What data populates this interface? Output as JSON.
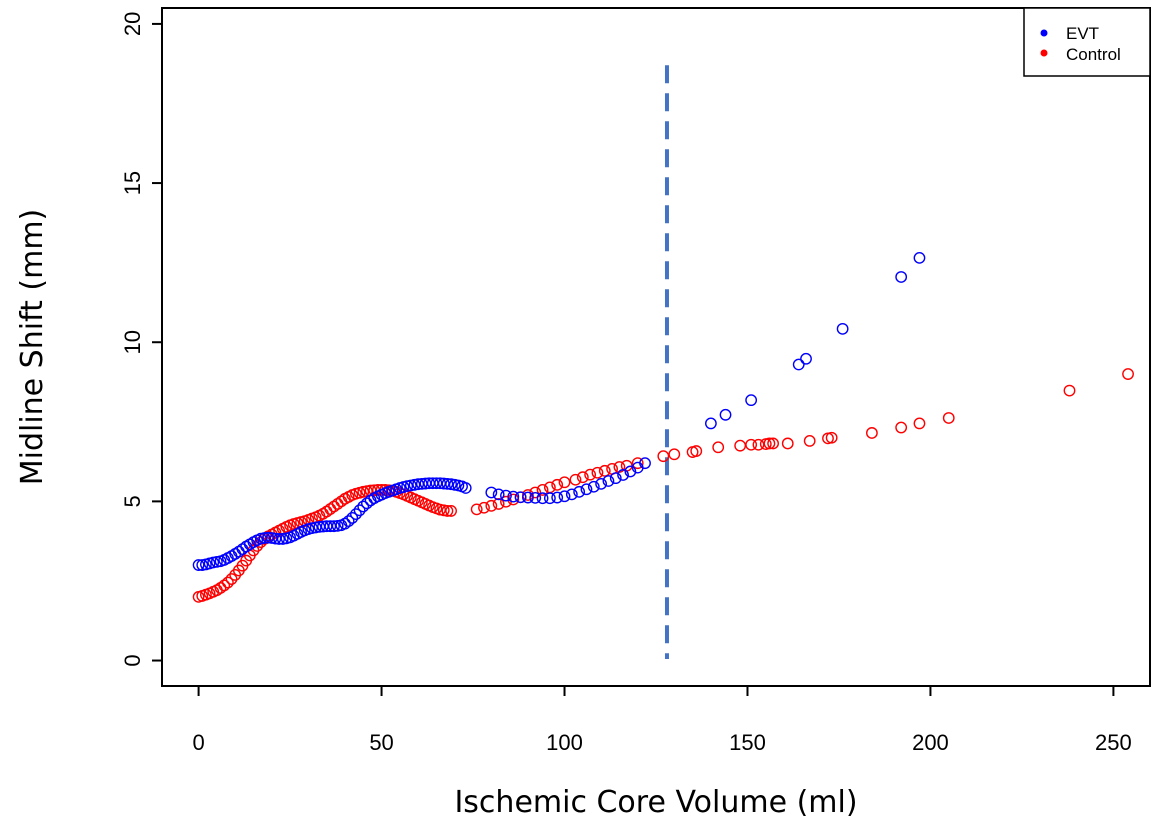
{
  "chart_data": {
    "type": "scatter",
    "xlabel": "Ischemic Core Volume (ml)",
    "ylabel": "Midline Shift (mm)",
    "xlim": [
      -10,
      260
    ],
    "ylim": [
      -0.8,
      20.5
    ],
    "x_ticks": [
      0,
      50,
      100,
      150,
      200,
      250
    ],
    "y_ticks": [
      0,
      5,
      10,
      15,
      20
    ],
    "x_tick_labels": [
      "0",
      "50",
      "100",
      "150",
      "200",
      "250"
    ],
    "y_tick_labels": [
      "0",
      "5",
      "10",
      "15",
      "20"
    ],
    "grid": false,
    "legend_position": "top-right",
    "reference_line": {
      "orientation": "vertical",
      "x": 128,
      "style": "dashed",
      "color": "#4472c4"
    },
    "colors": {
      "EVT": "#0000ff",
      "Control": "#ff0000"
    },
    "series": [
      {
        "name": "EVT",
        "points": [
          [
            0,
            3
          ],
          [
            1,
            3
          ],
          [
            2,
            3.02
          ],
          [
            3,
            3.05
          ],
          [
            4,
            3.08
          ],
          [
            5,
            3.1
          ],
          [
            6,
            3.12
          ],
          [
            7,
            3.16
          ],
          [
            8,
            3.22
          ],
          [
            9,
            3.28
          ],
          [
            10,
            3.35
          ],
          [
            11,
            3.42
          ],
          [
            12,
            3.5
          ],
          [
            13,
            3.58
          ],
          [
            14,
            3.65
          ],
          [
            15,
            3.72
          ],
          [
            16,
            3.78
          ],
          [
            17,
            3.83
          ],
          [
            18,
            3.85
          ],
          [
            19,
            3.86
          ],
          [
            20,
            3.85
          ],
          [
            21,
            3.83
          ],
          [
            22,
            3.82
          ],
          [
            23,
            3.82
          ],
          [
            24,
            3.84
          ],
          [
            25,
            3.87
          ],
          [
            26,
            3.92
          ],
          [
            27,
            3.98
          ],
          [
            28,
            4.04
          ],
          [
            29,
            4.09
          ],
          [
            30,
            4.13
          ],
          [
            31,
            4.16
          ],
          [
            32,
            4.18
          ],
          [
            33,
            4.2
          ],
          [
            34,
            4.21
          ],
          [
            35,
            4.22
          ],
          [
            36,
            4.22
          ],
          [
            37,
            4.22
          ],
          [
            38,
            4.23
          ],
          [
            39,
            4.25
          ],
          [
            40,
            4.3
          ],
          [
            41,
            4.38
          ],
          [
            42,
            4.48
          ],
          [
            43,
            4.6
          ],
          [
            44,
            4.72
          ],
          [
            45,
            4.84
          ],
          [
            46,
            4.94
          ],
          [
            47,
            5.03
          ],
          [
            48,
            5.1
          ],
          [
            49,
            5.16
          ],
          [
            50,
            5.21
          ],
          [
            51,
            5.26
          ],
          [
            52,
            5.3
          ],
          [
            53,
            5.34
          ],
          [
            54,
            5.38
          ],
          [
            55,
            5.42
          ],
          [
            56,
            5.45
          ],
          [
            57,
            5.48
          ],
          [
            58,
            5.5
          ],
          [
            59,
            5.52
          ],
          [
            60,
            5.54
          ],
          [
            61,
            5.55
          ],
          [
            62,
            5.56
          ],
          [
            63,
            5.57
          ],
          [
            64,
            5.57
          ],
          [
            65,
            5.57
          ],
          [
            66,
            5.57
          ],
          [
            67,
            5.56
          ],
          [
            68,
            5.55
          ],
          [
            69,
            5.54
          ],
          [
            70,
            5.52
          ],
          [
            71,
            5.5
          ],
          [
            72,
            5.47
          ],
          [
            73,
            5.42
          ],
          [
            80,
            5.28
          ],
          [
            82,
            5.22
          ],
          [
            84,
            5.18
          ],
          [
            86,
            5.15
          ],
          [
            88,
            5.13
          ],
          [
            90,
            5.12
          ],
          [
            92,
            5.11
          ],
          [
            94,
            5.1
          ],
          [
            96,
            5.1
          ],
          [
            98,
            5.12
          ],
          [
            100,
            5.16
          ],
          [
            102,
            5.22
          ],
          [
            104,
            5.3
          ],
          [
            106,
            5.38
          ],
          [
            108,
            5.46
          ],
          [
            110,
            5.55
          ],
          [
            112,
            5.64
          ],
          [
            114,
            5.73
          ],
          [
            116,
            5.83
          ],
          [
            118,
            5.94
          ],
          [
            120,
            6.06
          ],
          [
            122,
            6.2
          ],
          [
            140,
            7.45
          ],
          [
            144,
            7.72
          ],
          [
            151,
            8.18
          ],
          [
            164,
            9.3
          ],
          [
            166,
            9.48
          ],
          [
            176,
            10.42
          ],
          [
            192,
            12.05
          ],
          [
            197,
            12.65
          ]
        ]
      },
      {
        "name": "Control",
        "points": [
          [
            0,
            2
          ],
          [
            1,
            2.03
          ],
          [
            2,
            2.07
          ],
          [
            3,
            2.11
          ],
          [
            4,
            2.16
          ],
          [
            5,
            2.21
          ],
          [
            6,
            2.28
          ],
          [
            7,
            2.36
          ],
          [
            8,
            2.45
          ],
          [
            9,
            2.56
          ],
          [
            10,
            2.69
          ],
          [
            11,
            2.83
          ],
          [
            12,
            2.98
          ],
          [
            13,
            3.14
          ],
          [
            14,
            3.3
          ],
          [
            15,
            3.46
          ],
          [
            16,
            3.6
          ],
          [
            17,
            3.72
          ],
          [
            18,
            3.82
          ],
          [
            19,
            3.9
          ],
          [
            20,
            3.96
          ],
          [
            21,
            4.02
          ],
          [
            22,
            4.08
          ],
          [
            23,
            4.14
          ],
          [
            24,
            4.2
          ],
          [
            25,
            4.25
          ],
          [
            26,
            4.29
          ],
          [
            27,
            4.32
          ],
          [
            28,
            4.35
          ],
          [
            29,
            4.38
          ],
          [
            30,
            4.42
          ],
          [
            31,
            4.46
          ],
          [
            32,
            4.5
          ],
          [
            33,
            4.55
          ],
          [
            34,
            4.61
          ],
          [
            35,
            4.68
          ],
          [
            36,
            4.76
          ],
          [
            37,
            4.84
          ],
          [
            38,
            4.92
          ],
          [
            39,
            5
          ],
          [
            40,
            5.08
          ],
          [
            41,
            5.14
          ],
          [
            42,
            5.2
          ],
          [
            43,
            5.24
          ],
          [
            44,
            5.27
          ],
          [
            45,
            5.3
          ],
          [
            46,
            5.32
          ],
          [
            47,
            5.34
          ],
          [
            48,
            5.35
          ],
          [
            49,
            5.36
          ],
          [
            50,
            5.36
          ],
          [
            51,
            5.36
          ],
          [
            52,
            5.35
          ],
          [
            53,
            5.33
          ],
          [
            54,
            5.3
          ],
          [
            55,
            5.26
          ],
          [
            56,
            5.22
          ],
          [
            57,
            5.17
          ],
          [
            58,
            5.12
          ],
          [
            59,
            5.07
          ],
          [
            60,
            5.02
          ],
          [
            61,
            4.97
          ],
          [
            62,
            4.92
          ],
          [
            63,
            4.87
          ],
          [
            64,
            4.82
          ],
          [
            65,
            4.78
          ],
          [
            66,
            4.74
          ],
          [
            67,
            4.72
          ],
          [
            68,
            4.7
          ],
          [
            69,
            4.7
          ],
          [
            76,
            4.75
          ],
          [
            78,
            4.8
          ],
          [
            80,
            4.86
          ],
          [
            82,
            4.92
          ],
          [
            84,
            4.99
          ],
          [
            86,
            5.06
          ],
          [
            88,
            5.13
          ],
          [
            90,
            5.2
          ],
          [
            92,
            5.28
          ],
          [
            94,
            5.36
          ],
          [
            96,
            5.44
          ],
          [
            98,
            5.52
          ],
          [
            100,
            5.6
          ],
          [
            103,
            5.68
          ],
          [
            105,
            5.76
          ],
          [
            107,
            5.84
          ],
          [
            109,
            5.9
          ],
          [
            111,
            5.96
          ],
          [
            113,
            6.02
          ],
          [
            115,
            6.08
          ],
          [
            117,
            6.12
          ],
          [
            120,
            6.2
          ],
          [
            127,
            6.42
          ],
          [
            130,
            6.48
          ],
          [
            135,
            6.55
          ],
          [
            136,
            6.58
          ],
          [
            142,
            6.7
          ],
          [
            148,
            6.75
          ],
          [
            151,
            6.78
          ],
          [
            153,
            6.78
          ],
          [
            155,
            6.8
          ],
          [
            156,
            6.82
          ],
          [
            157,
            6.82
          ],
          [
            161,
            6.82
          ],
          [
            167,
            6.9
          ],
          [
            172,
            6.98
          ],
          [
            173,
            7
          ],
          [
            184,
            7.15
          ],
          [
            192,
            7.32
          ],
          [
            197,
            7.45
          ],
          [
            205,
            7.62
          ],
          [
            238,
            8.48
          ],
          [
            254,
            9
          ]
        ]
      }
    ]
  }
}
